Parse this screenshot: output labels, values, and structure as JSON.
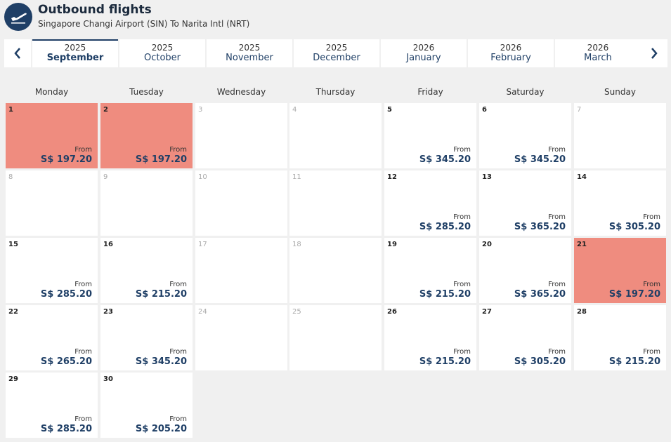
{
  "header": {
    "title": "Outbound flights",
    "route": "Singapore Changi Airport (SIN) To Narita Intl (NRT)"
  },
  "months": [
    {
      "year": "2025",
      "name": "September",
      "active": true
    },
    {
      "year": "2025",
      "name": "October"
    },
    {
      "year": "2025",
      "name": "November"
    },
    {
      "year": "2025",
      "name": "December"
    },
    {
      "year": "2026",
      "name": "January"
    },
    {
      "year": "2026",
      "name": "February"
    },
    {
      "year": "2026",
      "name": "March"
    }
  ],
  "weekdays": [
    "Monday",
    "Tuesday",
    "Wednesday",
    "Thursday",
    "Friday",
    "Saturday",
    "Sunday"
  ],
  "from_label": "From",
  "days": [
    {
      "day": "1",
      "price": "S$ 197.20",
      "cheapest": true
    },
    {
      "day": "2",
      "price": "S$ 197.20",
      "cheapest": true
    },
    {
      "day": "3"
    },
    {
      "day": "4"
    },
    {
      "day": "5",
      "price": "S$ 345.20"
    },
    {
      "day": "6",
      "price": "S$ 345.20"
    },
    {
      "day": "7"
    },
    {
      "day": "8"
    },
    {
      "day": "9"
    },
    {
      "day": "10"
    },
    {
      "day": "11"
    },
    {
      "day": "12",
      "price": "S$ 285.20"
    },
    {
      "day": "13",
      "price": "S$ 365.20"
    },
    {
      "day": "14",
      "price": "S$ 305.20"
    },
    {
      "day": "15",
      "price": "S$ 285.20"
    },
    {
      "day": "16",
      "price": "S$ 215.20"
    },
    {
      "day": "17"
    },
    {
      "day": "18"
    },
    {
      "day": "19",
      "price": "S$ 215.20"
    },
    {
      "day": "20",
      "price": "S$ 365.20"
    },
    {
      "day": "21",
      "price": "S$ 197.20",
      "cheapest": true
    },
    {
      "day": "22",
      "price": "S$ 265.20"
    },
    {
      "day": "23",
      "price": "S$ 345.20"
    },
    {
      "day": "24"
    },
    {
      "day": "25"
    },
    {
      "day": "26",
      "price": "S$ 215.20"
    },
    {
      "day": "27",
      "price": "S$ 305.20"
    },
    {
      "day": "28",
      "price": "S$ 215.20"
    },
    {
      "day": "29",
      "price": "S$ 285.20"
    },
    {
      "day": "30",
      "price": "S$ 205.20"
    }
  ],
  "colors": {
    "cheapest": "#ef8c7f",
    "brand": "#1f3f66"
  }
}
